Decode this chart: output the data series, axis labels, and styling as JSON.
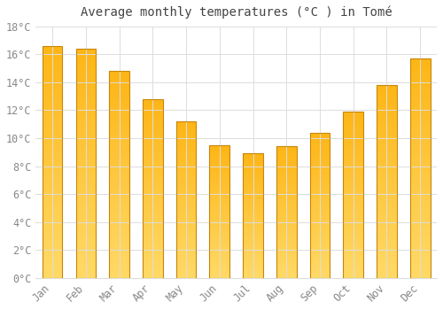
{
  "title": "Average monthly temperatures (°C ) in Tomé",
  "months": [
    "Jan",
    "Feb",
    "Mar",
    "Apr",
    "May",
    "Jun",
    "Jul",
    "Aug",
    "Sep",
    "Oct",
    "Nov",
    "Dec"
  ],
  "values": [
    16.6,
    16.4,
    14.8,
    12.8,
    11.2,
    9.5,
    8.9,
    9.4,
    10.4,
    11.9,
    13.8,
    15.7
  ],
  "bar_color_top": "#FDB515",
  "bar_color_bottom": "#FFD966",
  "bar_edge_color": "#C8860A",
  "background_color": "#FFFFFF",
  "grid_color": "#DDDDDD",
  "text_color": "#888888",
  "ylim": [
    0,
    18
  ],
  "yticks": [
    0,
    2,
    4,
    6,
    8,
    10,
    12,
    14,
    16,
    18
  ],
  "title_fontsize": 10,
  "tick_fontsize": 8.5,
  "bar_width": 0.6
}
